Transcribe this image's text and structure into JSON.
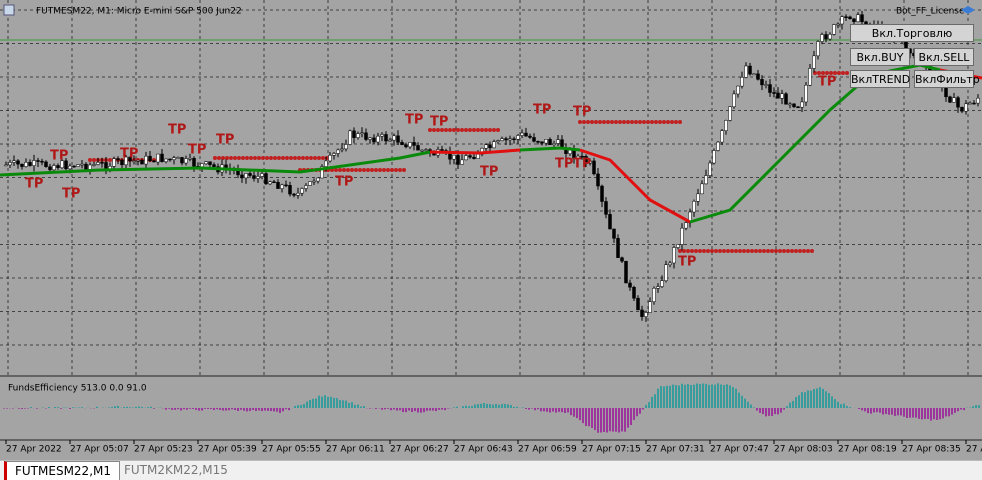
{
  "window": {
    "title": "FUTMESM22, M1:  Micro E-mini S&P 500 Jun22",
    "license": "Bot_FF_License"
  },
  "buttons": [
    "Вкл.Торговлю",
    "Вкл.BUY",
    "Вкл.SELL",
    "ВклTREND",
    "ВклФильтр"
  ],
  "indicator": {
    "label": "FundsEfficiency 513.0 0.0 91.0"
  },
  "time_axis": [
    "27 Apr 2022",
    "27 Apr 05:07",
    "27 Apr 05:23",
    "27 Apr 05:39",
    "27 Apr 05:55",
    "27 Apr 06:11",
    "27 Apr 06:27",
    "27 Apr 06:43",
    "27 Apr 06:59",
    "27 Apr 07:15",
    "27 Apr 07:31",
    "27 Apr 07:47",
    "27 Apr 08:03",
    "27 Apr 08:19",
    "27 Apr 08:35",
    "27 A"
  ],
  "tabs": [
    "FUTMESM22,M1",
    "FUTM2KM22,M15"
  ],
  "tp_markers": [
    "TP",
    "TP",
    "TP",
    "TP",
    "TP",
    "TP",
    "TP",
    "TP",
    "TP",
    "TP",
    "TP",
    "TP",
    "TP",
    "TP",
    "TP",
    "TP",
    "TP"
  ]
}
